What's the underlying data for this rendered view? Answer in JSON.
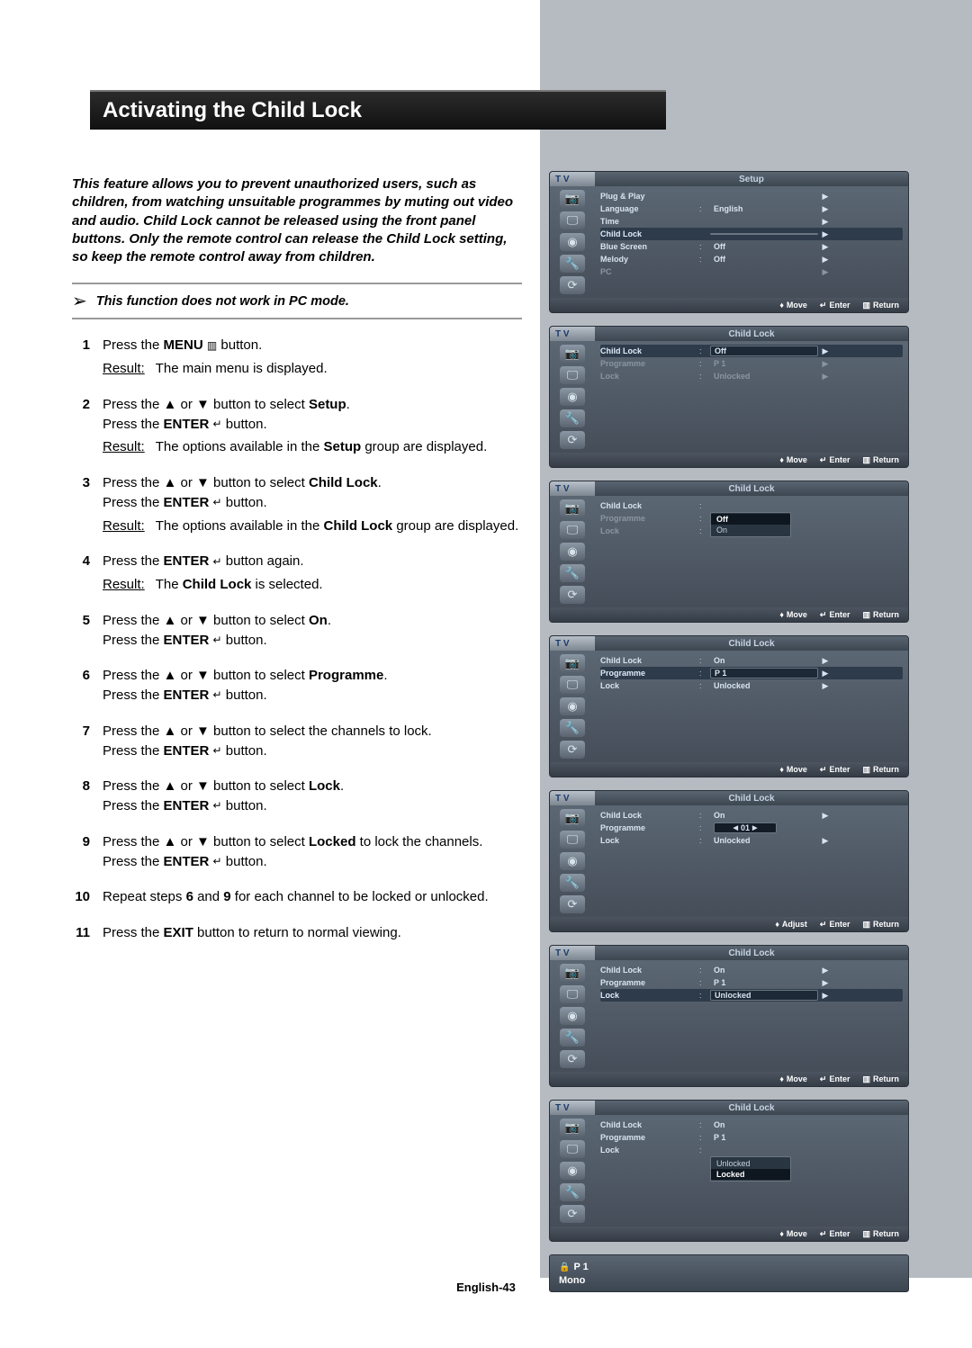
{
  "title": "Activating the Child Lock",
  "intro": "This feature allows you to prevent unauthorized users, such as children, from watching unsuitable programmes by muting out video and audio. Child Lock cannot be released using the front panel buttons. Only the remote control can release the Child Lock setting, so keep the remote control away from children.",
  "note": "This function does not work in PC mode.",
  "result_label": "Result:",
  "steps": [
    {
      "n": "1",
      "lines": [
        {
          "t": "Press the <b>MENU</b> <span class='icon-sq'>▥</span> button."
        }
      ],
      "result": "The main menu is displayed."
    },
    {
      "n": "2",
      "lines": [
        {
          "t": "Press the ▲ or ▼ button to select <b>Setup</b>."
        },
        {
          "t": "Press the <b>ENTER</b> <span class='icon-sq'>↵</span> button."
        }
      ],
      "result": "The options available in the <b>Setup</b> group are displayed."
    },
    {
      "n": "3",
      "lines": [
        {
          "t": "Press the ▲ or ▼ button to select <b>Child Lock</b>."
        },
        {
          "t": "Press the <b>ENTER</b> <span class='icon-sq'>↵</span> button."
        }
      ],
      "result": "The options available in the <b>Child Lock</b> group are displayed."
    },
    {
      "n": "4",
      "lines": [
        {
          "t": "Press the <b>ENTER</b> <span class='icon-sq'>↵</span> button again."
        }
      ],
      "result": "The <b>Child Lock</b> is selected."
    },
    {
      "n": "5",
      "lines": [
        {
          "t": "Press the ▲ or ▼ button to select <b>On</b>."
        },
        {
          "t": "Press the <b>ENTER</b> <span class='icon-sq'>↵</span> button."
        }
      ]
    },
    {
      "n": "6",
      "lines": [
        {
          "t": "Press the ▲ or ▼ button to select <b>Programme</b>."
        },
        {
          "t": "Press the <b>ENTER</b> <span class='icon-sq'>↵</span> button."
        }
      ]
    },
    {
      "n": "7",
      "lines": [
        {
          "t": "Press the ▲ or ▼ button to select the channels to lock."
        },
        {
          "t": "Press the <b>ENTER</b> <span class='icon-sq'>↵</span> button."
        }
      ]
    },
    {
      "n": "8",
      "lines": [
        {
          "t": "Press the ▲ or ▼ button to select <b>Lock</b>."
        },
        {
          "t": "Press the <b>ENTER</b> <span class='icon-sq'>↵</span> button."
        }
      ]
    },
    {
      "n": "9",
      "lines": [
        {
          "t": "Press the ▲ or ▼ button to select <b>Locked</b> to lock the channels."
        },
        {
          "t": "Press the <b>ENTER</b> <span class='icon-sq'>↵</span> button."
        }
      ]
    },
    {
      "n": "10",
      "lines": [
        {
          "t": "Repeat steps <b>6</b> and <b>9</b> for each channel to be locked or unlocked."
        }
      ]
    },
    {
      "n": "11",
      "lines": [
        {
          "t": "Press the <b>EXIT</b> button to return to normal viewing."
        }
      ]
    }
  ],
  "osd_common": {
    "tv_label": "T V",
    "icons": [
      "📷",
      "🖵",
      "◉",
      "🔧",
      "⟳"
    ],
    "nav_move": "Move",
    "nav_adjust": "Adjust",
    "nav_enter": "Enter",
    "nav_return": "Return"
  },
  "osd_panels": [
    {
      "head": "Setup",
      "nav": "move",
      "rows": [
        {
          "lbl": "Plug & Play",
          "val": "",
          "arr": "▶"
        },
        {
          "lbl": "Language",
          "val": "English",
          "sep": ":",
          "arr": "▶"
        },
        {
          "lbl": "Time",
          "val": "",
          "arr": "▶"
        },
        {
          "lbl": "Child Lock",
          "val": "",
          "arr": "▶",
          "sel": true
        },
        {
          "lbl": "Blue Screen",
          "val": "Off",
          "sep": ":",
          "arr": "▶"
        },
        {
          "lbl": "Melody",
          "val": "Off",
          "sep": ":",
          "arr": "▶"
        },
        {
          "lbl": "PC",
          "val": "",
          "arr": "▶",
          "dim": true
        }
      ]
    },
    {
      "head": "Child Lock",
      "nav": "move",
      "rows": [
        {
          "lbl": "Child Lock",
          "val": "Off",
          "sep": ":",
          "arr": "▶",
          "sel": true
        },
        {
          "lbl": "Programme",
          "val": "P   1",
          "sep": ":",
          "arr": "▶",
          "dim": true
        },
        {
          "lbl": "Lock",
          "val": "Unlocked",
          "sep": ":",
          "arr": "▶",
          "dim": true
        }
      ]
    },
    {
      "head": "Child Lock",
      "nav": "move",
      "dropdown": {
        "items": [
          "Off",
          "On"
        ],
        "sel": 0
      },
      "rows": [
        {
          "lbl": "Child Lock",
          "val": "",
          "sep": ":",
          "arr": ""
        },
        {
          "lbl": "Programme",
          "val": "",
          "sep": ":",
          "arr": "",
          "dim": true
        },
        {
          "lbl": "Lock",
          "val": "Unlocked",
          "sep": ":",
          "arr": "",
          "dim": true
        }
      ]
    },
    {
      "head": "Child Lock",
      "nav": "move",
      "rows": [
        {
          "lbl": "Child Lock",
          "val": "On",
          "sep": ":",
          "arr": "▶"
        },
        {
          "lbl": "Programme",
          "val": "P   1",
          "sep": ":",
          "arr": "▶",
          "sel": true
        },
        {
          "lbl": "Lock",
          "val": "Unlocked",
          "sep": ":",
          "arr": "▶"
        }
      ]
    },
    {
      "head": "Child Lock",
      "nav": "adjust",
      "rows": [
        {
          "lbl": "Child Lock",
          "val": "On",
          "sep": ":",
          "arr": "▶"
        },
        {
          "lbl": "Programme",
          "val": "",
          "sep": ":",
          "arr": "",
          "spinner": "01"
        },
        {
          "lbl": "Lock",
          "val": "Unlocked",
          "sep": ":",
          "arr": "▶"
        }
      ]
    },
    {
      "head": "Child Lock",
      "nav": "move",
      "rows": [
        {
          "lbl": "Child Lock",
          "val": "On",
          "sep": ":",
          "arr": "▶"
        },
        {
          "lbl": "Programme",
          "val": "P   1",
          "sep": ":",
          "arr": "▶"
        },
        {
          "lbl": "Lock",
          "val": "Unlocked",
          "sep": ":",
          "arr": "▶",
          "sel": true
        }
      ]
    },
    {
      "head": "Child Lock",
      "nav": "move",
      "dropdown": {
        "items": [
          "Unlocked",
          "Locked"
        ],
        "sel": 1,
        "row": 2
      },
      "rows": [
        {
          "lbl": "Child Lock",
          "val": "On",
          "sep": ":",
          "arr": ""
        },
        {
          "lbl": "Programme",
          "val": "P   1",
          "sep": ":",
          "arr": ""
        },
        {
          "lbl": "Lock",
          "val": "",
          "sep": ":",
          "arr": ""
        }
      ]
    }
  ],
  "status": {
    "line1": "P 1",
    "line2": "Mono",
    "lock": "🔒"
  },
  "page_num": "English-43"
}
